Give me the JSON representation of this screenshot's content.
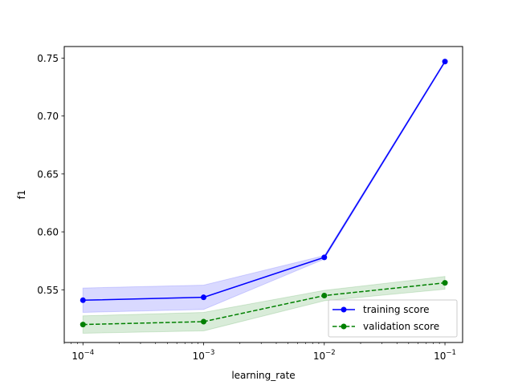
{
  "chart_data": {
    "type": "line",
    "xlabel": "learning_rate",
    "ylabel": "f1",
    "xscale": "log",
    "xlim": [
      7e-05,
      0.14
    ],
    "ylim": [
      0.5045,
      0.76
    ],
    "grid": false,
    "legend_position": "lower right",
    "x": [
      0.0001,
      0.001,
      0.01,
      0.1
    ],
    "x_tick_values": [
      0.0001,
      0.001,
      0.01,
      0.1
    ],
    "x_tick_bases": [
      "10",
      "10",
      "10",
      "10"
    ],
    "x_tick_exponents": [
      "−4",
      "−3",
      "−2",
      "−1"
    ],
    "y_ticks": [
      "0.55",
      "0.60",
      "0.65",
      "0.70",
      "0.75"
    ],
    "series": [
      {
        "name": "training score",
        "color": "#0000ff",
        "linestyle": "solid",
        "marker": "circle",
        "values": [
          0.541,
          0.5435,
          0.578,
          0.747
        ],
        "band_low": [
          0.5305,
          0.533,
          0.5765,
          0.746
        ],
        "band_high": [
          0.5515,
          0.554,
          0.5795,
          0.748
        ],
        "band_color": "#0000ff",
        "band_opacity": 0.15
      },
      {
        "name": "validation score",
        "color": "#008000",
        "linestyle": "dashed",
        "marker": "circle",
        "values": [
          0.52,
          0.5225,
          0.545,
          0.556
        ],
        "band_low": [
          0.5125,
          0.5145,
          0.5405,
          0.5505
        ],
        "band_high": [
          0.5275,
          0.5305,
          0.5495,
          0.5615
        ],
        "band_color": "#008000",
        "band_opacity": 0.15
      }
    ]
  }
}
